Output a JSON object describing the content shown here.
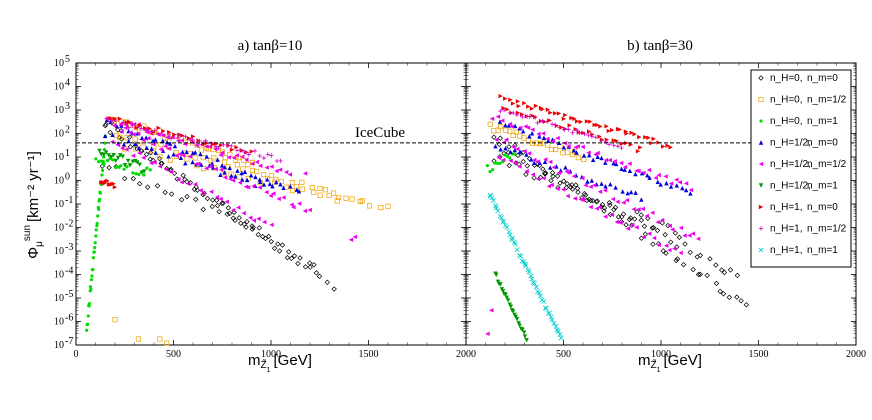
{
  "figure": {
    "panel_a_title": "a) tanβ=10",
    "panel_b_title": "b) tanβ=30",
    "xlabel": "m",
    "xlabel_sub": "Z̃",
    "xlabel_subsub": "1",
    "xlabel_unit": "[GeV]",
    "ylabel": "Φ",
    "ylabel_sub": "μ",
    "ylabel_sup": "sun",
    "ylabel_unit": "[km⁻² yr⁻¹]",
    "icecube_label": "IceCube",
    "icecube_flux": 40
  },
  "legend": [
    {
      "nH": "n_H=0,",
      "nm": "n_m=0",
      "color": "#000000",
      "marker": "diamond-open"
    },
    {
      "nH": "n_H=0,",
      "nm": "n_m=1/2",
      "color": "#f0a000",
      "marker": "square-open"
    },
    {
      "nH": "n_H=0,",
      "nm": "n_m=1",
      "color": "#00dd00",
      "marker": "circle"
    },
    {
      "nH": "n_H=1/2,",
      "nm": "n_m=0",
      "color": "#0000dd",
      "marker": "triangle-up"
    },
    {
      "nH": "n_H=1/2,",
      "nm": "n_m=1/2",
      "color": "#ee00ee",
      "marker": "triangle-left"
    },
    {
      "nH": "n_H=1/2,",
      "nm": "n_m=1",
      "color": "#009900",
      "marker": "triangle-down"
    },
    {
      "nH": "n_H=1,",
      "nm": "n_m=0",
      "color": "#ee0000",
      "marker": "triangle-right"
    },
    {
      "nH": "n_H=1,",
      "nm": "n_m=1/2",
      "color": "#cc00cc",
      "marker": "plus"
    },
    {
      "nH": "n_H=1,",
      "nm": "n_m=1",
      "color": "#00cccc",
      "marker": "x"
    }
  ],
  "chart_data": [
    {
      "type": "scatter",
      "title": "a) tanβ=10",
      "xlabel": "m_Z̃1 [GeV]",
      "ylabel": "Φ_μ^sun [km⁻² yr⁻¹]",
      "xlim": [
        0,
        2000
      ],
      "ylim": [
        1e-07,
        100000.0
      ],
      "yscale": "log",
      "x_ticks": [
        "0",
        "500",
        "1000",
        "1500",
        "2000"
      ],
      "y_tick_exponents": [
        -7,
        -6,
        -5,
        -4,
        -3,
        -2,
        -1,
        0,
        1,
        2,
        3,
        4,
        5
      ],
      "hline": {
        "y": 40,
        "label": "IceCube",
        "style": "dashed"
      },
      "series": [
        {
          "name": "n_H=0, n_m=0",
          "color": "#000000",
          "marker": "diamond-open",
          "bands": [
            {
              "start": [
                150,
                300
              ],
              "end": [
                1320,
                3e-05
              ],
              "count": 40,
              "spread": 0.35
            },
            {
              "start": [
                150,
                150
              ],
              "end": [
                1220,
                0.0002
              ],
              "count": 35,
              "spread": 0.35
            },
            {
              "start": [
                130,
                5
              ],
              "end": [
                900,
                0.01
              ],
              "count": 20,
              "spread": 0.4
            }
          ]
        },
        {
          "name": "n_H=0, n_m=1/2",
          "color": "#f0a000",
          "marker": "square-open",
          "bands": [
            {
              "start": [
                170,
                500
              ],
              "end": [
                900,
                5
              ],
              "count": 35,
              "spread": 0.25
            },
            {
              "start": [
                200,
                100
              ],
              "end": [
                1550,
                0.08
              ],
              "count": 40,
              "spread": 0.25
            },
            {
              "start": [
                250,
                30
              ],
              "end": [
                1350,
                0.15
              ],
              "count": 25,
              "spread": 0.3
            }
          ],
          "points": [
            [
              1600,
              0.08
            ],
            [
              200,
              1.2e-06
            ],
            [
              320,
              1.8e-07
            ],
            [
              430,
              1.8e-07
            ],
            [
              465,
              1.2e-07
            ]
          ]
        },
        {
          "name": "n_H=0, n_m=1",
          "color": "#00dd00",
          "marker": "circle",
          "bands": [
            {
              "start": [
                55,
                5e-07
              ],
              "end": [
                150,
                50
              ],
              "count": 40,
              "spread": 0.35
            },
            {
              "start": [
                100,
                10
              ],
              "end": [
                380,
                2
              ],
              "count": 20,
              "spread": 0.4
            }
          ]
        },
        {
          "name": "n_H=1/2, n_m=0",
          "color": "#0000dd",
          "marker": "triangle-up",
          "bands": [
            {
              "start": [
                160,
                300
              ],
              "end": [
                1150,
                0.3
              ],
              "count": 40,
              "spread": 0.25
            },
            {
              "start": [
                150,
                80
              ],
              "end": [
                1000,
                0.5
              ],
              "count": 30,
              "spread": 0.3
            }
          ]
        },
        {
          "name": "n_H=1/2, n_m=1/2",
          "color": "#ee00ee",
          "marker": "triangle-left",
          "bands": [
            {
              "start": [
                150,
                500
              ],
              "end": [
                1100,
                2
              ],
              "count": 40,
              "spread": 0.25
            },
            {
              "start": [
                200,
                200
              ],
              "end": [
                1200,
                0.05
              ],
              "count": 40,
              "spread": 0.3
            },
            {
              "start": [
                180,
                50
              ],
              "end": [
                1000,
                0.01
              ],
              "count": 30,
              "spread": 0.3
            }
          ],
          "points": [
            [
              1430,
              0.004
            ],
            [
              1410,
              0.003
            ],
            [
              1175,
              2
            ]
          ]
        },
        {
          "name": "n_H=1/2, n_m=1",
          "color": "#009900",
          "marker": "triangle-down",
          "bands": [
            {
              "start": [
                120,
                20
              ],
              "end": [
                350,
                3
              ],
              "count": 20,
              "spread": 0.4
            }
          ]
        },
        {
          "name": "n_H=1, n_m=0",
          "color": "#ee0000",
          "marker": "triangle-right",
          "bands": [
            {
              "start": [
                130,
                1
              ],
              "end": [
                200,
                0.6
              ],
              "count": 10,
              "spread": 0.2
            },
            {
              "start": [
                180,
                400
              ],
              "end": [
                900,
                15
              ],
              "count": 30,
              "spread": 0.25
            }
          ]
        },
        {
          "name": "n_H=1, n_m=1/2",
          "color": "#cc00cc",
          "marker": "plus",
          "bands": [
            {
              "start": [
                180,
                300
              ],
              "end": [
                1050,
                8
              ],
              "count": 40,
              "spread": 0.25
            }
          ]
        },
        {
          "name": "n_H=1, n_m=1",
          "color": "#00cccc",
          "marker": "x",
          "bands": []
        }
      ]
    },
    {
      "type": "scatter",
      "title": "b) tanβ=30",
      "xlabel": "m_Z̃1 [GeV]",
      "ylabel": "",
      "xlim": [
        0,
        2000
      ],
      "ylim": [
        1e-07,
        100000.0
      ],
      "yscale": "log",
      "x_ticks": [
        "0",
        "500",
        "1000",
        "1500",
        "2000"
      ],
      "hline": {
        "y": 40,
        "label": "",
        "style": "dashed"
      },
      "series": [
        {
          "name": "n_H=0, n_m=0",
          "color": "#000000",
          "marker": "diamond-open",
          "bands": [
            {
              "start": [
                150,
                80
              ],
              "end": [
                1450,
                4e-06
              ],
              "count": 45,
              "spread": 0.35
            },
            {
              "start": [
                160,
                30
              ],
              "end": [
                1400,
                8e-05
              ],
              "count": 40,
              "spread": 0.35
            },
            {
              "start": [
                150,
                10
              ],
              "end": [
                1100,
                0.005
              ],
              "count": 30,
              "spread": 0.4
            }
          ]
        },
        {
          "name": "n_H=0, n_m=1/2",
          "color": "#f0a000",
          "marker": "square-open",
          "bands": [
            {
              "start": [
                120,
                200
              ],
              "end": [
                600,
                10
              ],
              "count": 25,
              "spread": 0.3
            }
          ]
        },
        {
          "name": "n_H=0, n_m=1",
          "color": "#00dd00",
          "marker": "circle",
          "bands": [
            {
              "start": [
                110,
                3
              ],
              "end": [
                250,
                20
              ],
              "count": 12,
              "spread": 0.4
            }
          ]
        },
        {
          "name": "n_H=1/2, n_m=0",
          "color": "#0000dd",
          "marker": "triangle-up",
          "bands": [
            {
              "start": [
                170,
                300
              ],
              "end": [
                1150,
                0.3
              ],
              "count": 40,
              "spread": 0.25
            },
            {
              "start": [
                150,
                30
              ],
              "end": [
                900,
                0.2
              ],
              "count": 30,
              "spread": 0.3
            }
          ]
        },
        {
          "name": "n_H=1/2, n_m=1/2",
          "color": "#ee00ee",
          "marker": "triangle-left",
          "bands": [
            {
              "start": [
                140,
                500
              ],
              "end": [
                1150,
                0.5
              ],
              "count": 40,
              "spread": 0.25
            },
            {
              "start": [
                160,
                60
              ],
              "end": [
                1200,
                0.003
              ],
              "count": 40,
              "spread": 0.3
            },
            {
              "start": [
                170,
                10
              ],
              "end": [
                1100,
                0.0008
              ],
              "count": 35,
              "spread": 0.3
            }
          ],
          "points": [
            [
              110,
              3e-07
            ],
            [
              130,
              3e-06
            ]
          ]
        },
        {
          "name": "n_H=1/2, n_m=1",
          "color": "#009900",
          "marker": "triangle-down",
          "bands": [
            {
              "start": [
                150,
                0.0001
              ],
              "end": [
                310,
                1.8e-07
              ],
              "count": 25,
              "spread": 0.15
            }
          ]
        },
        {
          "name": "n_H=1, n_m=0",
          "color": "#ee0000",
          "marker": "triangle-right",
          "bands": [
            {
              "start": [
                180,
                3000
              ],
              "end": [
                1050,
                30
              ],
              "count": 45,
              "spread": 0.25
            },
            {
              "start": [
                190,
                1200
              ],
              "end": [
                900,
                20
              ],
              "count": 30,
              "spread": 0.25
            }
          ]
        },
        {
          "name": "n_H=1, n_m=1/2",
          "color": "#cc00cc",
          "marker": "plus",
          "bands": [
            {
              "start": [
                180,
                1000
              ],
              "end": [
                800,
                30
              ],
              "count": 30,
              "spread": 0.25
            }
          ]
        },
        {
          "name": "n_H=1, n_m=1",
          "color": "#00cccc",
          "marker": "x",
          "bands": [
            {
              "start": [
                120,
                0.3
              ],
              "end": [
                490,
                1.8e-07
              ],
              "count": 50,
              "spread": 0.15
            }
          ]
        }
      ]
    }
  ]
}
